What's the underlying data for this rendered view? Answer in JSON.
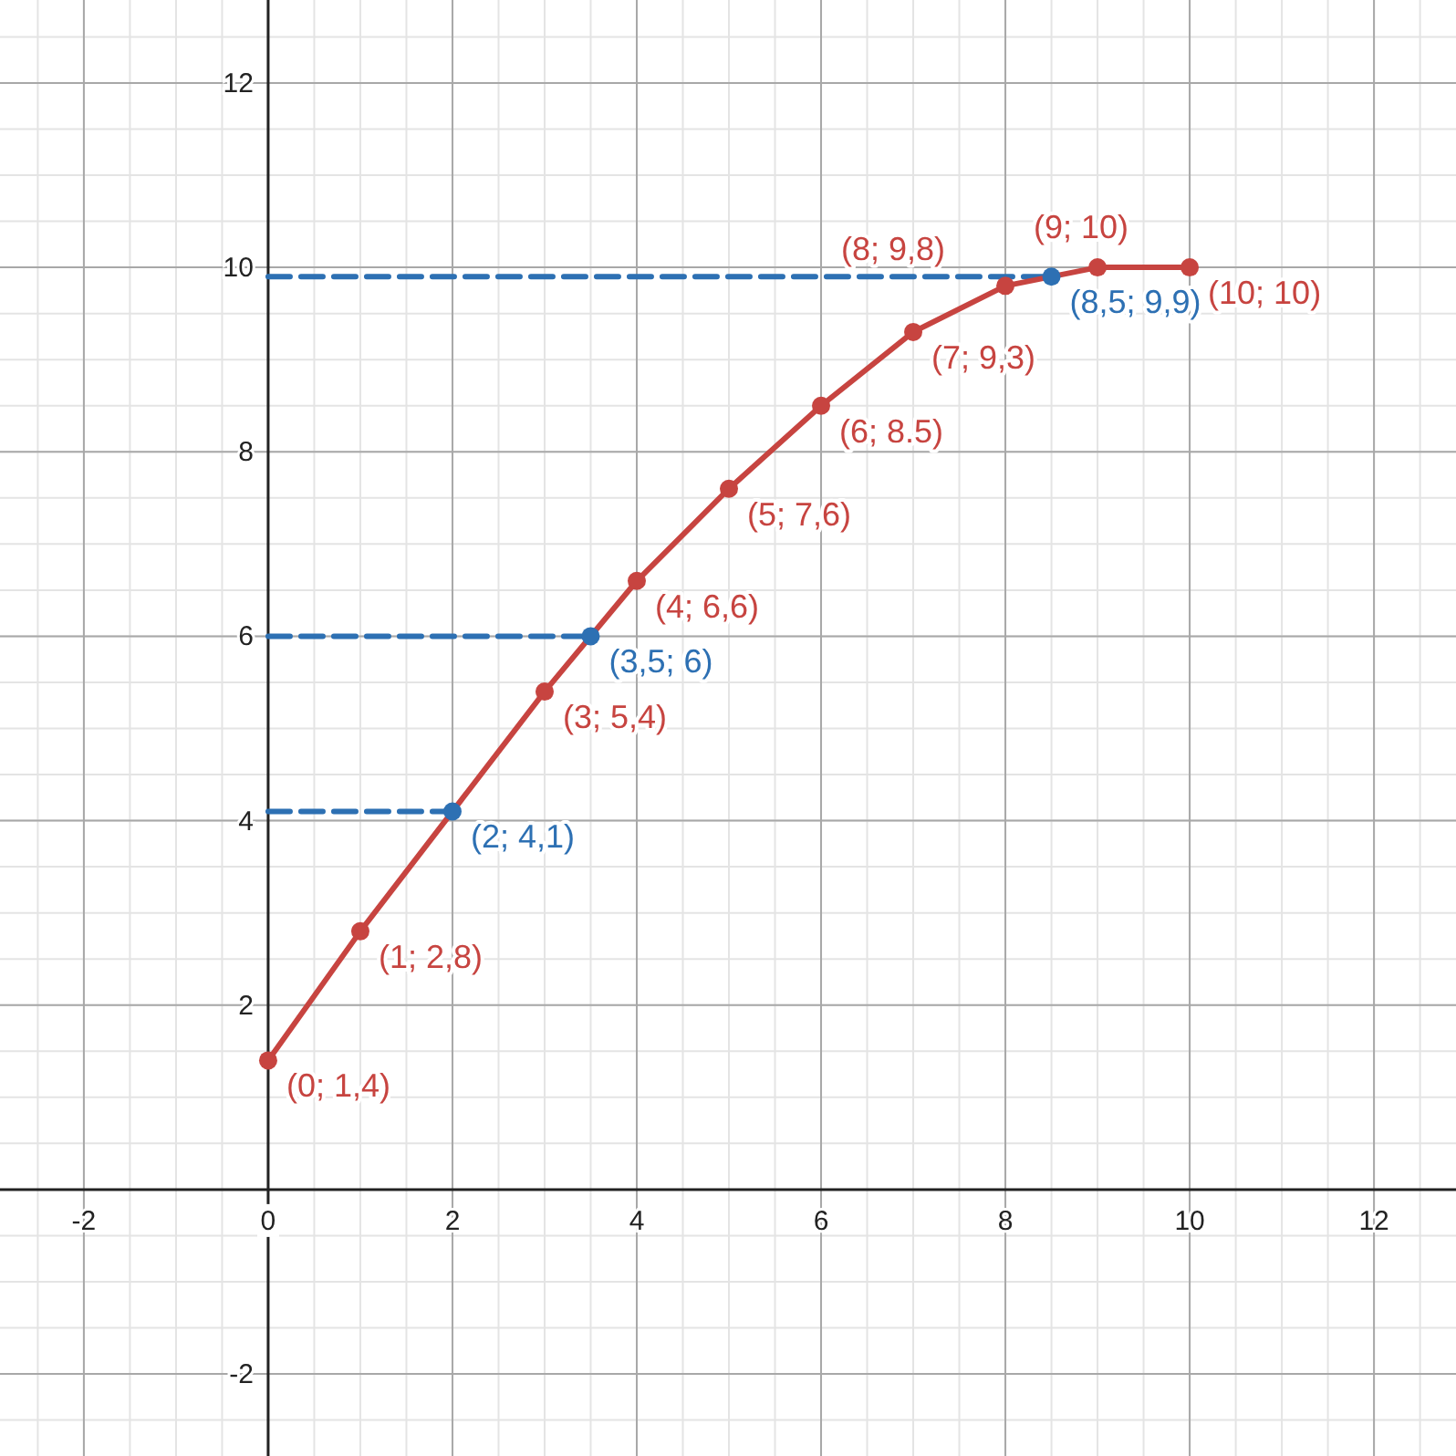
{
  "chart_data": {
    "type": "line",
    "xlim": [
      -2.91,
      12.89
    ],
    "ylim": [
      -2.89,
      12.9
    ],
    "xticks": [
      -2,
      {
        "value": 0,
        "label": "0"
      },
      2,
      4,
      6,
      8,
      10,
      12
    ],
    "yticks": [
      -2,
      {
        "value": 0,
        "label": null
      },
      2,
      4,
      6,
      8,
      10,
      12
    ],
    "grid": true,
    "marker": "circle",
    "series": [
      {
        "type": "line",
        "color": "#c74440",
        "x": [
          0,
          1,
          3,
          4,
          5,
          6,
          7,
          8,
          9,
          10
        ],
        "values": [
          1.4,
          2.8,
          5.4,
          6.6,
          7.6,
          8.5,
          9.3,
          9.8,
          10,
          10
        ]
      },
      {
        "type": "line",
        "line_style": "dashed",
        "marker": "none",
        "color": "#2d70b3",
        "x": [
          0,
          2
        ],
        "values": [
          4.1,
          4.1
        ]
      },
      {
        "type": "line",
        "line_style": "dashed",
        "marker": "none",
        "color": "#2d70b3",
        "x": [
          0,
          3.5
        ],
        "values": [
          6,
          6
        ]
      },
      {
        "type": "line",
        "line_style": "dashed",
        "marker": "none",
        "color": "#2d70b3",
        "x": [
          0,
          8.5
        ],
        "values": [
          9.9,
          9.9
        ]
      },
      {
        "type": "scatter",
        "color": "#2d70b3",
        "x": [
          2,
          3.5,
          8.5
        ],
        "values": [
          4.1,
          6,
          9.9
        ]
      }
    ],
    "annotations": [
      {
        "text": "(0; 1,4)",
        "x": 0,
        "y": 1.4
      },
      {
        "text": "(1; 2,8)",
        "x": 1,
        "y": 2.8
      },
      {
        "text": "(3; 5,4)",
        "x": 3,
        "y": 5.4
      },
      {
        "text": "(4; 6,6)",
        "x": 4,
        "y": 6.6
      },
      {
        "text": "(5; 7,6)",
        "x": 5,
        "y": 7.6
      },
      {
        "text": "(6; 8.5)",
        "x": 6,
        "y": 8.5
      },
      {
        "text": "(7; 9,3)",
        "x": 7,
        "y": 9.3
      },
      {
        "text": "(8; 9,8)",
        "x": 8,
        "y": 9.8
      },
      {
        "text": "(9; 10)",
        "x": 9,
        "y": 10
      },
      {
        "text": "(10; 10)",
        "x": 10,
        "y": 10
      },
      {
        "text": "(2; 4,1)",
        "x": 2,
        "y": 4.1
      },
      {
        "text": "(3,5; 6)",
        "x": 3.5,
        "y": 6
      },
      {
        "text": "(8,5; 9,9)",
        "x": 8.5,
        "y": 9.9
      }
    ]
  }
}
